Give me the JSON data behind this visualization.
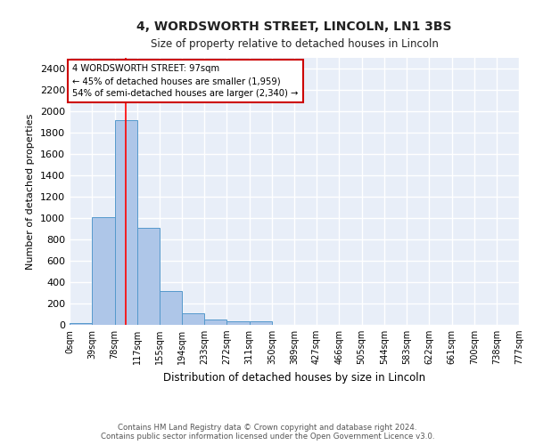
{
  "title1": "4, WORDSWORTH STREET, LINCOLN, LN1 3BS",
  "title2": "Size of property relative to detached houses in Lincoln",
  "xlabel": "Distribution of detached houses by size in Lincoln",
  "ylabel": "Number of detached properties",
  "bar_values": [
    20,
    1010,
    1920,
    910,
    320,
    110,
    50,
    30,
    30,
    0,
    0,
    0,
    0,
    0,
    0,
    0,
    0,
    0,
    0,
    0
  ],
  "bin_edges": [
    0,
    39,
    78,
    117,
    155,
    194,
    233,
    272,
    311,
    350,
    389,
    427,
    466,
    505,
    544,
    583,
    622,
    661,
    700,
    738,
    777
  ],
  "tick_labels": [
    "0sqm",
    "39sqm",
    "78sqm",
    "117sqm",
    "155sqm",
    "194sqm",
    "233sqm",
    "272sqm",
    "311sqm",
    "350sqm",
    "389sqm",
    "427sqm",
    "466sqm",
    "505sqm",
    "544sqm",
    "583sqm",
    "622sqm",
    "661sqm",
    "700sqm",
    "738sqm",
    "777sqm"
  ],
  "bar_color": "#aec6e8",
  "bar_edge_color": "#5599cc",
  "bg_color": "#e8eef8",
  "grid_color": "#ffffff",
  "annotation_box_color": "#cc0000",
  "property_line_x": 97,
  "annotation_text": "4 WORDSWORTH STREET: 97sqm\n← 45% of detached houses are smaller (1,959)\n54% of semi-detached houses are larger (2,340) →",
  "ylim": [
    0,
    2500
  ],
  "yticks": [
    0,
    200,
    400,
    600,
    800,
    1000,
    1200,
    1400,
    1600,
    1800,
    2000,
    2200,
    2400
  ],
  "footer1": "Contains HM Land Registry data © Crown copyright and database right 2024.",
  "footer2": "Contains public sector information licensed under the Open Government Licence v3.0."
}
